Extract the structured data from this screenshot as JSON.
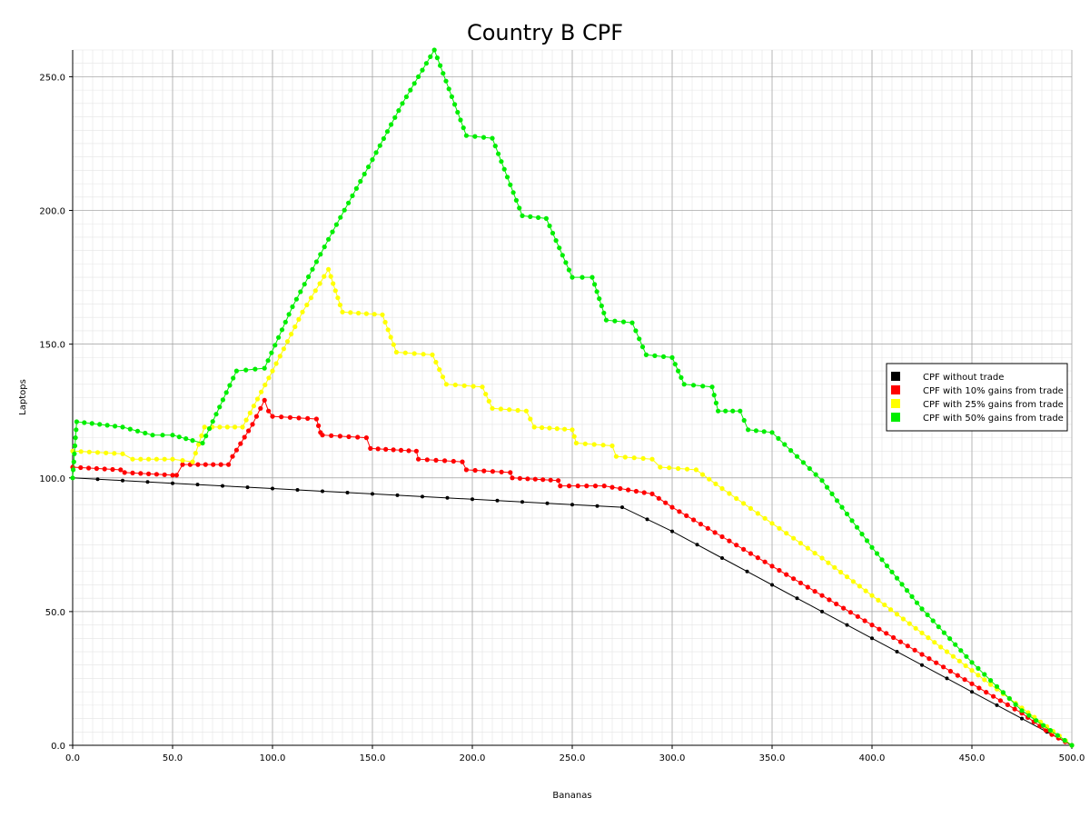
{
  "chart_data": {
    "type": "line",
    "title": "Country B CPF",
    "xlabel": "Bananas",
    "ylabel": "Laptops",
    "xlim": [
      0,
      500
    ],
    "ylim": [
      0,
      260
    ],
    "xticks": [
      0,
      50,
      100,
      150,
      200,
      250,
      300,
      350,
      400,
      450,
      500
    ],
    "yticks": [
      0,
      50,
      100,
      150,
      200,
      250
    ],
    "xtick_labels": [
      "0.0",
      "50.0",
      "100.0",
      "150.0",
      "200.0",
      "250.0",
      "300.0",
      "350.0",
      "400.0",
      "450.0",
      "500.0"
    ],
    "ytick_labels": [
      "0.0",
      "50.0",
      "100.0",
      "150.0",
      "200.0",
      "250.0"
    ],
    "grid": true,
    "legend_position": "right",
    "series": [
      {
        "name": "CPF without trade",
        "color": "#000000",
        "points": [
          [
            0,
            100
          ],
          [
            25,
            99
          ],
          [
            50,
            98
          ],
          [
            75,
            97
          ],
          [
            100,
            96
          ],
          [
            125,
            95
          ],
          [
            150,
            94
          ],
          [
            175,
            93
          ],
          [
            200,
            92
          ],
          [
            225,
            91
          ],
          [
            250,
            90
          ],
          [
            275,
            89
          ],
          [
            300,
            80
          ],
          [
            325,
            70
          ],
          [
            350,
            60
          ],
          [
            375,
            50
          ],
          [
            400,
            40
          ],
          [
            425,
            30
          ],
          [
            450,
            20
          ],
          [
            475,
            10
          ],
          [
            500,
            0
          ]
        ]
      },
      {
        "name": "CPF with 10% gains from trade",
        "color": "#ff0000",
        "points": [
          [
            0,
            104
          ],
          [
            24,
            103
          ],
          [
            26,
            102
          ],
          [
            50,
            101
          ],
          [
            52,
            101
          ],
          [
            55,
            105
          ],
          [
            78,
            105
          ],
          [
            80,
            108
          ],
          [
            90,
            120
          ],
          [
            96,
            129
          ],
          [
            98,
            125
          ],
          [
            100,
            123
          ],
          [
            122,
            122
          ],
          [
            124,
            117
          ],
          [
            125,
            116
          ],
          [
            147,
            115
          ],
          [
            149,
            111
          ],
          [
            172,
            110
          ],
          [
            173,
            107
          ],
          [
            195,
            106
          ],
          [
            197,
            103
          ],
          [
            219,
            102
          ],
          [
            220,
            100
          ],
          [
            243,
            99
          ],
          [
            244,
            97
          ],
          [
            266,
            97
          ],
          [
            290,
            94
          ],
          [
            300,
            89
          ],
          [
            325,
            78
          ],
          [
            350,
            67
          ],
          [
            375,
            56
          ],
          [
            400,
            45
          ],
          [
            425,
            34
          ],
          [
            450,
            23
          ],
          [
            475,
            12
          ],
          [
            490,
            4
          ],
          [
            500,
            0
          ]
        ]
      },
      {
        "name": "CPF with 25% gains from trade",
        "color": "#ffff00",
        "points": [
          [
            0,
            110
          ],
          [
            25,
            109
          ],
          [
            30,
            107
          ],
          [
            50,
            107
          ],
          [
            60,
            106
          ],
          [
            66,
            119
          ],
          [
            85,
            119
          ],
          [
            100,
            140
          ],
          [
            115,
            162
          ],
          [
            128,
            178
          ],
          [
            135,
            162
          ],
          [
            155,
            161
          ],
          [
            162,
            147
          ],
          [
            180,
            146
          ],
          [
            187,
            135
          ],
          [
            205,
            134
          ],
          [
            210,
            126
          ],
          [
            227,
            125
          ],
          [
            231,
            119
          ],
          [
            250,
            118
          ],
          [
            252,
            113
          ],
          [
            270,
            112
          ],
          [
            272,
            108
          ],
          [
            290,
            107
          ],
          [
            294,
            104
          ],
          [
            312,
            103
          ],
          [
            325,
            96
          ],
          [
            350,
            83
          ],
          [
            375,
            70
          ],
          [
            400,
            56
          ],
          [
            425,
            42
          ],
          [
            450,
            28
          ],
          [
            475,
            14
          ],
          [
            500,
            0
          ]
        ]
      },
      {
        "name": "CPF with 50% gains from trade",
        "color": "#00ee00",
        "points": [
          [
            0,
            100
          ],
          [
            2,
            121
          ],
          [
            25,
            119
          ],
          [
            40,
            116
          ],
          [
            50,
            116
          ],
          [
            60,
            114
          ],
          [
            65,
            113
          ],
          [
            82,
            140
          ],
          [
            96,
            141
          ],
          [
            110,
            164
          ],
          [
            130,
            192
          ],
          [
            150,
            219
          ],
          [
            165,
            240
          ],
          [
            181,
            260
          ],
          [
            197,
            228
          ],
          [
            210,
            227
          ],
          [
            225,
            198
          ],
          [
            237,
            197
          ],
          [
            250,
            175
          ],
          [
            260,
            175
          ],
          [
            267,
            159
          ],
          [
            280,
            158
          ],
          [
            287,
            146
          ],
          [
            300,
            145
          ],
          [
            306,
            135
          ],
          [
            320,
            134
          ],
          [
            323,
            125
          ],
          [
            334,
            125
          ],
          [
            338,
            118
          ],
          [
            350,
            117
          ],
          [
            375,
            99
          ],
          [
            400,
            74
          ],
          [
            425,
            51
          ],
          [
            450,
            31
          ],
          [
            475,
            13
          ],
          [
            500,
            0
          ]
        ]
      }
    ]
  }
}
